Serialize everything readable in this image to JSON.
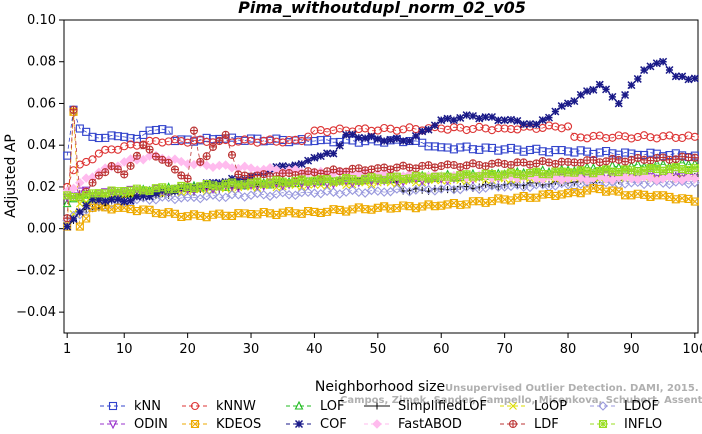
{
  "chart_data": {
    "type": "line",
    "title": "Pima_withoutdupl_norm_02_v05",
    "xlabel": "Neighborhood size",
    "ylabel": "Adjusted AP",
    "xlim": [
      1,
      100
    ],
    "ylim": [
      -0.05,
      0.1
    ],
    "xticks": [
      1,
      10,
      20,
      30,
      40,
      50,
      60,
      70,
      80,
      90,
      100
    ],
    "yticks": [
      -0.04,
      -0.02,
      0.0,
      0.02,
      0.04,
      0.06,
      0.08,
      0.1
    ],
    "ytick_labels": [
      "−0.04",
      "−0.02",
      "0.00",
      "0.02",
      "0.04",
      "0.06",
      "0.08",
      "0.10"
    ],
    "legend_placement": "bottom",
    "series": [
      {
        "name": "kNN",
        "color": "#3344cc",
        "marker": "square",
        "dash": "4,3",
        "keypoints": [
          [
            1,
            0.035
          ],
          [
            2,
            0.057
          ],
          [
            3,
            0.048
          ],
          [
            5,
            0.044
          ],
          [
            10,
            0.044
          ],
          [
            12,
            0.043
          ],
          [
            14,
            0.047
          ],
          [
            17,
            0.047
          ],
          [
            18,
            0.042
          ],
          [
            25,
            0.043
          ],
          [
            40,
            0.042
          ],
          [
            55,
            0.042
          ],
          [
            60,
            0.039
          ],
          [
            70,
            0.038
          ],
          [
            80,
            0.037
          ],
          [
            90,
            0.036
          ],
          [
            100,
            0.035
          ]
        ]
      },
      {
        "name": "kNNW",
        "color": "#dd3333",
        "marker": "circle",
        "dash": "4,3",
        "keypoints": [
          [
            1,
            0.02
          ],
          [
            2,
            0.028
          ],
          [
            4,
            0.032
          ],
          [
            6,
            0.036
          ],
          [
            8,
            0.038
          ],
          [
            15,
            0.042
          ],
          [
            25,
            0.042
          ],
          [
            38,
            0.042
          ],
          [
            40,
            0.047
          ],
          [
            60,
            0.048
          ],
          [
            70,
            0.048
          ],
          [
            80,
            0.049
          ],
          [
            81,
            0.044
          ],
          [
            100,
            0.044
          ]
        ]
      },
      {
        "name": "LOF",
        "color": "#22bb22",
        "marker": "triangle",
        "dash": "4,3",
        "keypoints": [
          [
            1,
            0.012
          ],
          [
            3,
            0.015
          ],
          [
            6,
            0.015
          ],
          [
            10,
            0.017
          ],
          [
            20,
            0.02
          ],
          [
            30,
            0.021
          ],
          [
            40,
            0.023
          ],
          [
            50,
            0.024
          ],
          [
            60,
            0.025
          ],
          [
            70,
            0.026
          ],
          [
            80,
            0.028
          ],
          [
            90,
            0.03
          ],
          [
            100,
            0.031
          ]
        ]
      },
      {
        "name": "SimplifiedLOF",
        "color": "#111111",
        "marker": "plus",
        "dash": "",
        "keypoints": [
          [
            1,
            0.001
          ],
          [
            3,
            0.008
          ],
          [
            6,
            0.01
          ],
          [
            10,
            0.015
          ],
          [
            15,
            0.016
          ],
          [
            20,
            0.018
          ],
          [
            30,
            0.021
          ],
          [
            45,
            0.024
          ],
          [
            52,
            0.026
          ],
          [
            54,
            0.018
          ],
          [
            60,
            0.019
          ],
          [
            70,
            0.021
          ],
          [
            80,
            0.022
          ],
          [
            90,
            0.024
          ],
          [
            100,
            0.025
          ]
        ]
      },
      {
        "name": "LoOP",
        "color": "#dddd00",
        "marker": "x",
        "dash": "4,3",
        "keypoints": [
          [
            1,
            0.002
          ],
          [
            3,
            0.012
          ],
          [
            6,
            0.015
          ],
          [
            10,
            0.016
          ],
          [
            20,
            0.018
          ],
          [
            30,
            0.02
          ],
          [
            40,
            0.021
          ],
          [
            50,
            0.022
          ],
          [
            60,
            0.023
          ],
          [
            70,
            0.024
          ],
          [
            80,
            0.024
          ],
          [
            90,
            0.024
          ],
          [
            100,
            0.025
          ]
        ]
      },
      {
        "name": "LDOF",
        "color": "#9999dd",
        "marker": "diamond",
        "dash": "4,3",
        "keypoints": [
          [
            1,
            0.004
          ],
          [
            4,
            0.009
          ],
          [
            8,
            0.012
          ],
          [
            12,
            0.014
          ],
          [
            20,
            0.015
          ],
          [
            30,
            0.016
          ],
          [
            40,
            0.017
          ],
          [
            50,
            0.018
          ],
          [
            60,
            0.019
          ],
          [
            70,
            0.02
          ],
          [
            80,
            0.021
          ],
          [
            90,
            0.022
          ],
          [
            100,
            0.022
          ]
        ]
      },
      {
        "name": "ODIN",
        "color": "#9933cc",
        "marker": "triangle-down",
        "dash": "4,3",
        "keypoints": [
          [
            1,
            0.015
          ],
          [
            3,
            0.018
          ],
          [
            6,
            0.017
          ],
          [
            10,
            0.018
          ],
          [
            20,
            0.019
          ],
          [
            30,
            0.021
          ],
          [
            40,
            0.022
          ],
          [
            50,
            0.023
          ],
          [
            60,
            0.024
          ],
          [
            70,
            0.025
          ],
          [
            80,
            0.025
          ],
          [
            90,
            0.026
          ],
          [
            100,
            0.026
          ]
        ]
      },
      {
        "name": "KDEOS",
        "color": "#eeaa00",
        "marker": "square-x",
        "dash": "4,3",
        "keypoints": [
          [
            1,
            0.001
          ],
          [
            2,
            0.056
          ],
          [
            3,
            0.001
          ],
          [
            5,
            0.01
          ],
          [
            10,
            0.01
          ],
          [
            20,
            0.006
          ],
          [
            30,
            0.007
          ],
          [
            40,
            0.008
          ],
          [
            50,
            0.01
          ],
          [
            60,
            0.011
          ],
          [
            70,
            0.014
          ],
          [
            80,
            0.017
          ],
          [
            85,
            0.019
          ],
          [
            90,
            0.016
          ],
          [
            95,
            0.016
          ],
          [
            100,
            0.013
          ]
        ]
      },
      {
        "name": "COF",
        "color": "#1a1a88",
        "marker": "star",
        "dash": "4,3",
        "keypoints": [
          [
            1,
            0.001
          ],
          [
            3,
            0.008
          ],
          [
            5,
            0.014
          ],
          [
            8,
            0.014
          ],
          [
            10,
            0.013
          ],
          [
            15,
            0.017
          ],
          [
            20,
            0.02
          ],
          [
            25,
            0.022
          ],
          [
            30,
            0.025
          ],
          [
            35,
            0.03
          ],
          [
            38,
            0.031
          ],
          [
            40,
            0.034
          ],
          [
            43,
            0.036
          ],
          [
            45,
            0.045
          ],
          [
            50,
            0.043
          ],
          [
            55,
            0.042
          ],
          [
            60,
            0.052
          ],
          [
            65,
            0.054
          ],
          [
            70,
            0.052
          ],
          [
            75,
            0.05
          ],
          [
            80,
            0.06
          ],
          [
            85,
            0.069
          ],
          [
            88,
            0.06
          ],
          [
            92,
            0.076
          ],
          [
            95,
            0.08
          ],
          [
            97,
            0.073
          ],
          [
            100,
            0.072
          ]
        ]
      },
      {
        "name": "FastABOD",
        "color": "#ffbbee",
        "marker": "diamond-filled",
        "dash": "4,3",
        "keypoints": [
          [
            1,
            0.018
          ],
          [
            3,
            0.022
          ],
          [
            6,
            0.027
          ],
          [
            10,
            0.032
          ],
          [
            15,
            0.035
          ],
          [
            20,
            0.031
          ],
          [
            30,
            0.029
          ],
          [
            40,
            0.027
          ],
          [
            50,
            0.026
          ],
          [
            60,
            0.025
          ],
          [
            70,
            0.025
          ],
          [
            80,
            0.024
          ],
          [
            90,
            0.024
          ],
          [
            100,
            0.024
          ]
        ]
      },
      {
        "name": "LDF",
        "color": "#bb3333",
        "marker": "circle-plus",
        "dash": "4,3",
        "keypoints": [
          [
            1,
            0.005
          ],
          [
            2,
            0.057
          ],
          [
            3,
            0.015
          ],
          [
            5,
            0.022
          ],
          [
            8,
            0.03
          ],
          [
            10,
            0.026
          ],
          [
            13,
            0.04
          ],
          [
            16,
            0.033
          ],
          [
            20,
            0.024
          ],
          [
            21,
            0.047
          ],
          [
            22,
            0.032
          ],
          [
            26,
            0.045
          ],
          [
            28,
            0.026
          ],
          [
            30,
            0.025
          ],
          [
            40,
            0.027
          ],
          [
            50,
            0.029
          ],
          [
            60,
            0.03
          ],
          [
            70,
            0.031
          ],
          [
            80,
            0.032
          ],
          [
            90,
            0.033
          ],
          [
            100,
            0.034
          ]
        ]
      },
      {
        "name": "INFLO",
        "color": "#99dd22",
        "marker": "square-star",
        "dash": "4,3",
        "keypoints": [
          [
            1,
            0.016
          ],
          [
            3,
            0.015
          ],
          [
            6,
            0.017
          ],
          [
            10,
            0.018
          ],
          [
            20,
            0.02
          ],
          [
            30,
            0.022
          ],
          [
            40,
            0.023
          ],
          [
            50,
            0.024
          ],
          [
            60,
            0.025
          ],
          [
            70,
            0.026
          ],
          [
            80,
            0.027
          ],
          [
            90,
            0.028
          ],
          [
            100,
            0.029
          ]
        ]
      }
    ]
  },
  "watermark": {
    "line1": "Unsupervised Outlier Detection. DAMI, 2015.",
    "line2": "Campos, Zimek, Sander, Campello, Micenkova, Schubert, Assent, Houle"
  }
}
